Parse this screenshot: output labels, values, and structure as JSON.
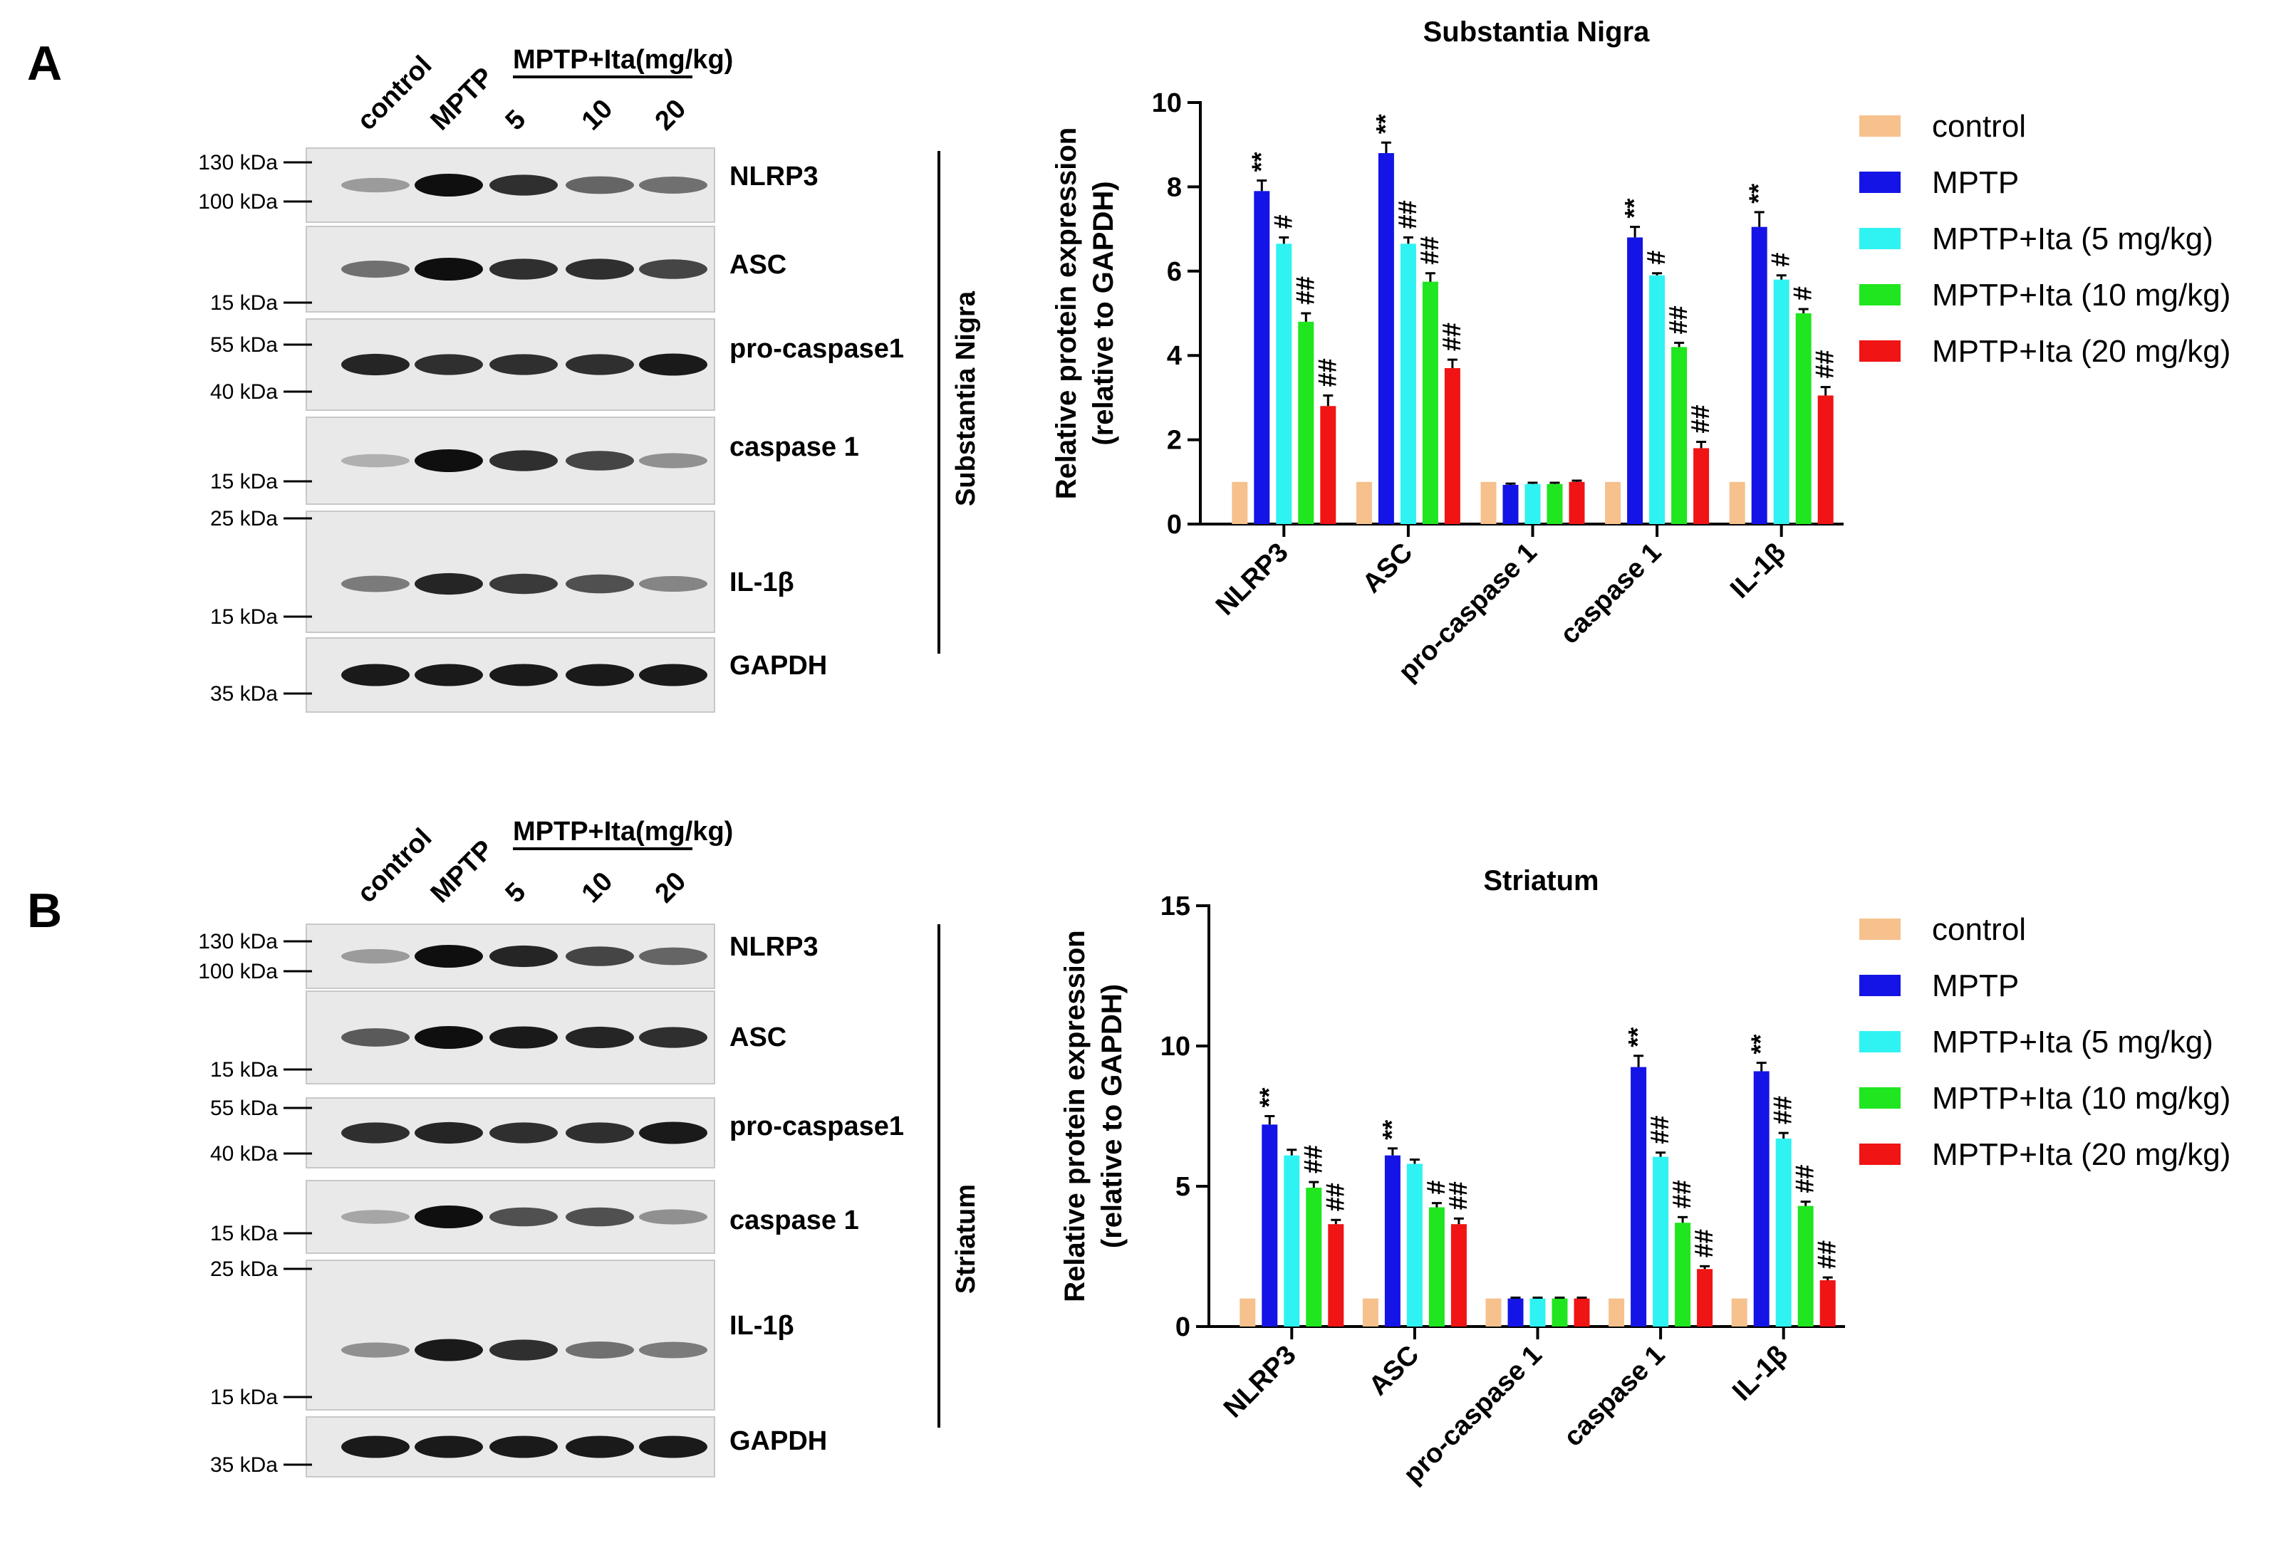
{
  "panels": [
    {
      "letter": "A",
      "blot": {
        "lanes": [
          "control",
          "MPTP",
          "5",
          "10",
          "20"
        ],
        "group_label": "MPTP+Ita(mg/kg)",
        "region_label": "Substantia  Nigra",
        "proteins": [
          "NLRP3",
          "ASC",
          "pro-caspase1",
          "caspase 1",
          "IL-1β",
          "GAPDH"
        ],
        "mw_markers": [
          "130 kDa",
          "100 kDa",
          "15 kDa",
          "55 kDa",
          "40 kDa",
          "15 kDa",
          "25 kDa",
          "15 kDa",
          "35 kDa"
        ],
        "band_intensity": [
          [
            0.35,
            1.0,
            0.85,
            0.6,
            0.55
          ],
          [
            0.55,
            1.0,
            0.85,
            0.85,
            0.75
          ],
          [
            0.9,
            0.85,
            0.85,
            0.85,
            0.95
          ],
          [
            0.25,
            1.0,
            0.85,
            0.75,
            0.4
          ],
          [
            0.5,
            0.9,
            0.8,
            0.7,
            0.45
          ],
          [
            0.95,
            0.95,
            0.95,
            0.95,
            0.95
          ]
        ]
      }
    },
    {
      "letter": "B",
      "blot": {
        "lanes": [
          "control",
          "MPTP",
          "5",
          "10",
          "20"
        ],
        "group_label": "MPTP+Ita(mg/kg)",
        "region_label": "Striatum",
        "proteins": [
          "NLRP3",
          "ASC",
          "pro-caspase1",
          "caspase 1",
          "IL-1β",
          "GAPDH"
        ],
        "mw_markers": [
          "130 kDa",
          "100 kDa",
          "15 kDa",
          "55 kDa",
          "40 kDa",
          "15 kDa",
          "25 kDa",
          "15 kDa",
          "35 kDa"
        ],
        "band_intensity": [
          [
            0.35,
            1.0,
            0.9,
            0.75,
            0.6
          ],
          [
            0.65,
            1.0,
            0.95,
            0.9,
            0.85
          ],
          [
            0.85,
            0.9,
            0.85,
            0.85,
            0.95
          ],
          [
            0.3,
            1.0,
            0.7,
            0.7,
            0.4
          ],
          [
            0.4,
            0.95,
            0.85,
            0.55,
            0.5
          ],
          [
            0.95,
            0.95,
            0.95,
            0.95,
            0.95
          ]
        ]
      }
    }
  ],
  "legend": {
    "entries": [
      "control",
      "MPTP",
      "MPTP+Ita (5 mg/kg)",
      "MPTP+Ita (10 mg/kg)",
      "MPTP+Ita (20 mg/kg)"
    ],
    "colors": [
      "#f6c18d",
      "#1414e6",
      "#2ff2f2",
      "#1fe61f",
      "#f01414"
    ]
  },
  "chart_data": [
    {
      "type": "bar",
      "title": "Substantia Nigra",
      "ylabel": "Relative protein expression",
      "ylabel2": "(relative to GAPDH)",
      "ylim": [
        0,
        10
      ],
      "yticks": [
        0,
        2,
        4,
        6,
        8,
        10
      ],
      "categories": [
        "NLRP3",
        "ASC",
        "pro-caspase 1",
        "caspase 1",
        "IL-1β"
      ],
      "series": [
        {
          "name": "control",
          "values": [
            1.0,
            1.0,
            1.0,
            1.0,
            1.0
          ],
          "errors": [
            0,
            0,
            0,
            0,
            0
          ],
          "sig": [
            "",
            "",
            "",
            "",
            ""
          ]
        },
        {
          "name": "MPTP",
          "values": [
            7.9,
            8.8,
            0.93,
            6.8,
            7.05
          ],
          "errors": [
            0.25,
            0.25,
            0.03,
            0.25,
            0.35
          ],
          "sig": [
            "**",
            "**",
            "",
            "**",
            "**"
          ]
        },
        {
          "name": "MPTP+Ita (5 mg/kg)",
          "values": [
            6.65,
            6.65,
            0.95,
            5.9,
            5.8
          ],
          "errors": [
            0.15,
            0.15,
            0.03,
            0.05,
            0.1
          ],
          "sig": [
            "#",
            "##",
            "",
            "#",
            "#"
          ]
        },
        {
          "name": "MPTP+Ita (10 mg/kg)",
          "values": [
            4.8,
            5.75,
            0.95,
            4.2,
            5.0
          ],
          "errors": [
            0.2,
            0.2,
            0.03,
            0.1,
            0.1
          ],
          "sig": [
            "##",
            "##",
            "",
            "##",
            "#"
          ]
        },
        {
          "name": "MPTP+Ita (20 mg/kg)",
          "values": [
            2.8,
            3.7,
            1.0,
            1.8,
            3.05
          ],
          "errors": [
            0.25,
            0.2,
            0.03,
            0.15,
            0.2
          ],
          "sig": [
            "##",
            "##",
            "",
            "##",
            "##"
          ]
        }
      ]
    },
    {
      "type": "bar",
      "title": "Striatum",
      "ylabel": "Relative protein expression",
      "ylabel2": "(relative to GAPDH)",
      "ylim": [
        0,
        15
      ],
      "yticks": [
        0,
        5,
        10,
        15
      ],
      "categories": [
        "NLRP3",
        "ASC",
        "pro-caspase 1",
        "caspase 1",
        "IL-1β"
      ],
      "series": [
        {
          "name": "control",
          "values": [
            1.0,
            1.0,
            1.0,
            1.0,
            1.0
          ],
          "errors": [
            0,
            0,
            0,
            0,
            0
          ],
          "sig": [
            "",
            "",
            "",
            "",
            ""
          ]
        },
        {
          "name": "MPTP",
          "values": [
            7.2,
            6.1,
            1.0,
            9.25,
            9.1
          ],
          "errors": [
            0.3,
            0.25,
            0.03,
            0.4,
            0.3
          ],
          "sig": [
            "**",
            "**",
            "",
            "**",
            "**"
          ]
        },
        {
          "name": "MPTP+Ita (5 mg/kg)",
          "values": [
            6.1,
            5.8,
            1.0,
            6.05,
            6.7
          ],
          "errors": [
            0.2,
            0.15,
            0.03,
            0.15,
            0.2
          ],
          "sig": [
            "",
            "",
            "",
            "##",
            "##"
          ]
        },
        {
          "name": "MPTP+Ita (10 mg/kg)",
          "values": [
            4.95,
            4.25,
            1.0,
            3.7,
            4.3
          ],
          "errors": [
            0.2,
            0.15,
            0.03,
            0.2,
            0.15
          ],
          "sig": [
            "##",
            "#",
            "",
            "##",
            "##"
          ]
        },
        {
          "name": "MPTP+Ita (20 mg/kg)",
          "values": [
            3.65,
            3.65,
            1.0,
            2.05,
            1.65
          ],
          "errors": [
            0.15,
            0.2,
            0.03,
            0.1,
            0.1
          ],
          "sig": [
            "##",
            "##",
            "",
            "##",
            "##"
          ]
        }
      ]
    }
  ]
}
